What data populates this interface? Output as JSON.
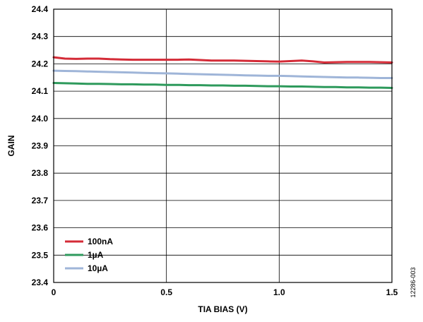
{
  "figure_code": "12286-003",
  "chart_data": {
    "type": "line",
    "title": "",
    "xlabel": "TIA BIAS (V)",
    "ylabel": "GAIN",
    "xlim": [
      0,
      1.5
    ],
    "ylim": [
      23.4,
      24.4
    ],
    "xticks": [
      0,
      0.5,
      1.0,
      1.5
    ],
    "xtick_labels": [
      "0",
      "0.5",
      "1.0",
      "1.5"
    ],
    "yticks": [
      23.4,
      23.5,
      23.6,
      23.7,
      23.8,
      23.9,
      24.0,
      24.1,
      24.2,
      24.3,
      24.4
    ],
    "ytick_labels": [
      "23.4",
      "23.5",
      "23.6",
      "23.7",
      "23.8",
      "23.9",
      "24.0",
      "24.1",
      "24.2",
      "24.3",
      "24.4"
    ],
    "grid": true,
    "legend_position": "bottom-left",
    "x": [
      0,
      0.05,
      0.1,
      0.15,
      0.2,
      0.25,
      0.3,
      0.35,
      0.4,
      0.45,
      0.5,
      0.55,
      0.6,
      0.65,
      0.7,
      0.75,
      0.8,
      0.85,
      0.9,
      0.95,
      1.0,
      1.05,
      1.1,
      1.15,
      1.2,
      1.25,
      1.3,
      1.35,
      1.4,
      1.45,
      1.5
    ],
    "series": [
      {
        "name": "100nA",
        "color": "#d42b37",
        "values": [
          24.224,
          24.219,
          24.218,
          24.219,
          24.219,
          24.217,
          24.216,
          24.215,
          24.215,
          24.215,
          24.215,
          24.215,
          24.216,
          24.214,
          24.212,
          24.212,
          24.212,
          24.211,
          24.21,
          24.209,
          24.208,
          24.21,
          24.212,
          24.209,
          24.205,
          24.206,
          24.207,
          24.207,
          24.207,
          24.206,
          24.205
        ]
      },
      {
        "name": "1µA",
        "color": "#2e9a5c",
        "values": [
          24.13,
          24.129,
          24.128,
          24.127,
          24.127,
          24.126,
          24.125,
          24.125,
          24.124,
          24.124,
          24.123,
          24.123,
          24.122,
          24.122,
          24.121,
          24.121,
          24.12,
          24.12,
          24.119,
          24.118,
          24.118,
          24.117,
          24.117,
          24.116,
          24.115,
          24.115,
          24.114,
          24.114,
          24.113,
          24.113,
          24.112
        ]
      },
      {
        "name": "10µA",
        "color": "#9fb5d8",
        "values": [
          24.175,
          24.174,
          24.173,
          24.172,
          24.171,
          24.17,
          24.169,
          24.168,
          24.167,
          24.166,
          24.165,
          24.164,
          24.163,
          24.162,
          24.161,
          24.16,
          24.159,
          24.158,
          24.157,
          24.156,
          24.156,
          24.155,
          24.154,
          24.153,
          24.152,
          24.151,
          24.15,
          24.15,
          24.149,
          24.148,
          24.148
        ]
      }
    ]
  }
}
